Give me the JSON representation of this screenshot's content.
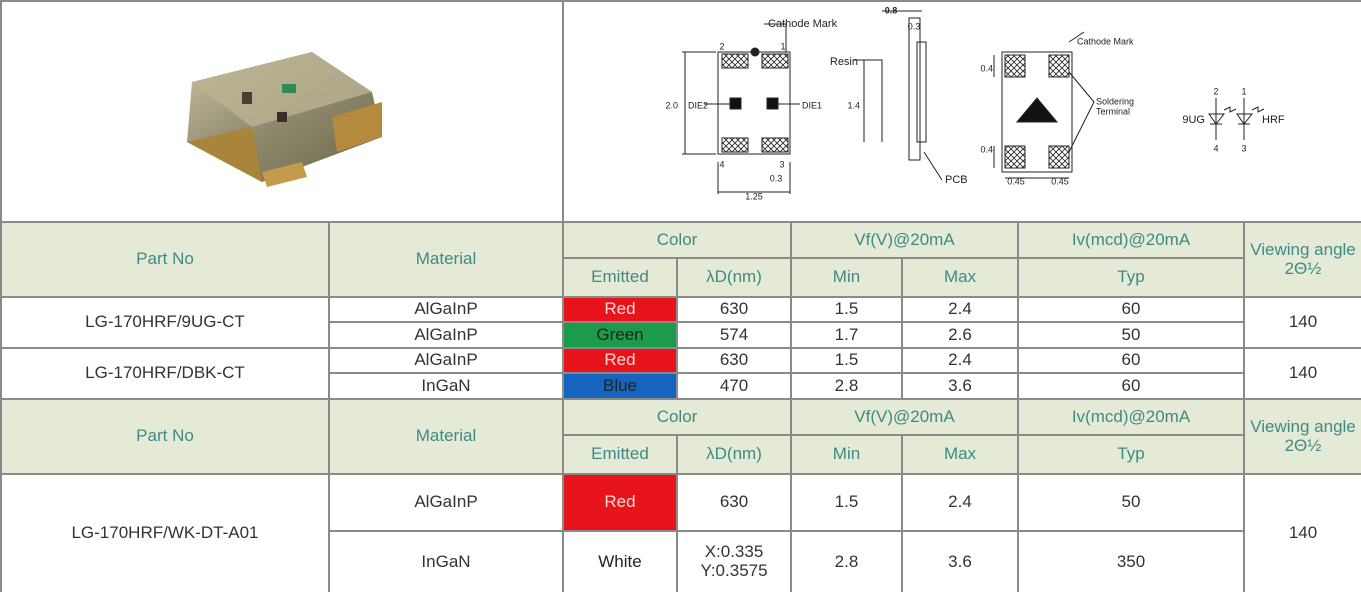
{
  "diagram": {
    "labels": [
      "Cathode Mark",
      "2",
      "1",
      "0.8",
      "0.3",
      "Resin",
      "2.0",
      "DIE2",
      "DIE1",
      "1.4",
      "4",
      "3",
      "0.3",
      "1.25",
      "PCB",
      "Cathode Mark",
      "0.4",
      "0.4",
      "Soldering",
      "Terminal",
      "0.45",
      "0.45",
      "2",
      "1",
      "9UG",
      "HRF",
      "4",
      "3"
    ]
  },
  "tables": [
    {
      "header": {
        "part_no": "Part No",
        "material": "Material",
        "color": "Color",
        "vf": "Vf(V)@20mA",
        "iv": "Iv(mcd)@20mA",
        "viewing": "Viewing angle 2Θ½",
        "emitted": "Emitted",
        "wavelength": "λD(nm)",
        "min": "Min",
        "max": "Max",
        "typ": "Typ"
      },
      "parts": [
        {
          "part_no": "LG-170HRF/9UG-CT",
          "viewing_angle": 140,
          "rows": [
            {
              "material": "AlGaInP",
              "emitted": "Red",
              "emitted_color": "#e8141b",
              "wavelength": 630,
              "vf_min": 1.5,
              "vf_max": 2.4,
              "iv_typ": 60
            },
            {
              "material": "AlGaInP",
              "emitted": "Green",
              "emitted_color": "#1a9c4a",
              "wavelength": 574,
              "vf_min": 1.7,
              "vf_max": 2.6,
              "iv_typ": 50
            }
          ]
        },
        {
          "part_no": "LG-170HRF/DBK-CT",
          "viewing_angle": 140,
          "rows": [
            {
              "material": "AlGaInP",
              "emitted": "Red",
              "emitted_color": "#e8141b",
              "wavelength": 630,
              "vf_min": 1.5,
              "vf_max": 2.4,
              "iv_typ": 60
            },
            {
              "material": "InGaN",
              "emitted": "Blue",
              "emitted_color": "#1565c0",
              "wavelength": 470,
              "vf_min": 2.8,
              "vf_max": 3.6,
              "iv_typ": 60
            }
          ]
        }
      ]
    },
    {
      "header": {
        "part_no": "Part No",
        "material": "Material",
        "color": "Color",
        "vf": "Vf(V)@20mA",
        "iv": "Iv(mcd)@20mA",
        "viewing": "Viewing angle 2Θ½",
        "emitted": "Emitted",
        "wavelength": "λD(nm)",
        "min": "Min",
        "max": "Max",
        "typ": "Typ"
      },
      "parts": [
        {
          "part_no": "LG-170HRF/WK-DT-A01",
          "viewing_angle": 140,
          "rows": [
            {
              "material": "AlGaInP",
              "emitted": "Red",
              "emitted_color": "#e8141b",
              "wavelength": 630,
              "vf_min": 1.5,
              "vf_max": 2.4,
              "iv_typ": 50
            },
            {
              "material": "InGaN",
              "emitted": "White",
              "emitted_color": "#ffffff",
              "wavelength": "X:0.335\nY:0.3575",
              "vf_min": 2.8,
              "vf_max": 3.6,
              "iv_typ": 350
            }
          ]
        }
      ]
    }
  ]
}
